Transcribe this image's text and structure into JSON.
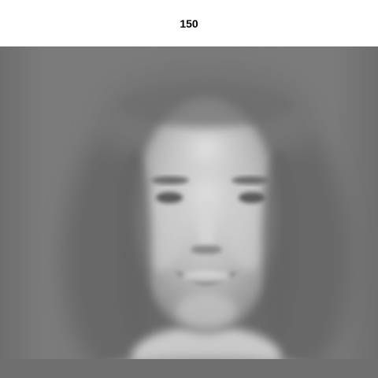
{
  "figure": {
    "title": "150"
  },
  "image": {
    "subject": "grayscale-face-reconstruction",
    "colors": {
      "background": "#7d7d7d",
      "bottom_band": "#6f6f6f",
      "hair_dark": "#606060",
      "skin": "#b8b8b8",
      "skin_light": "#d9d9d9",
      "features_dark": "#585858"
    }
  }
}
